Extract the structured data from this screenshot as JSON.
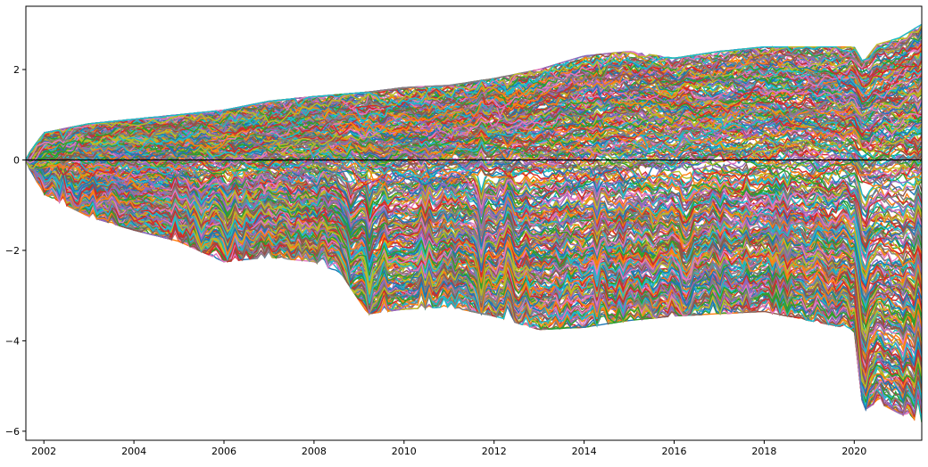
{
  "chart_data": {
    "type": "line",
    "title": "",
    "xlabel": "",
    "ylabel": "",
    "xlim": [
      2001.6,
      2021.5
    ],
    "ylim": [
      -6.2,
      3.4
    ],
    "x_ticks": [
      2002,
      2004,
      2006,
      2008,
      2010,
      2012,
      2014,
      2016,
      2018,
      2020
    ],
    "x_tick_labels": [
      "2002",
      "2004",
      "2006",
      "2008",
      "2010",
      "2012",
      "2014",
      "2016",
      "2018",
      "2020"
    ],
    "y_ticks": [
      -6,
      -4,
      -2,
      0,
      2
    ],
    "y_tick_labels": [
      "−6",
      "−4",
      "−2",
      "0",
      "2"
    ],
    "reference_line": {
      "y": 0,
      "color": "#000000"
    },
    "grid": false,
    "legend": "none",
    "palette": [
      "#1f77b4",
      "#ff7f0e",
      "#2ca02c",
      "#d62728",
      "#9467bd",
      "#8c564b",
      "#e377c2",
      "#7f7f7f",
      "#bcbd22",
      "#17becf"
    ],
    "series_note_count": 400,
    "envelope": {
      "dates": [
        2001.6,
        2002.0,
        2003.0,
        2004.0,
        2005.0,
        2006.0,
        2007.0,
        2008.0,
        2008.6,
        2009.2,
        2010.0,
        2011.0,
        2012.0,
        2013.0,
        2014.0,
        2015.0,
        2016.0,
        2017.0,
        2018.0,
        2019.0,
        2020.0,
        2020.2,
        2020.5,
        2021.0,
        2021.5
      ],
      "upper": [
        0.0,
        0.55,
        0.75,
        0.85,
        0.95,
        1.05,
        1.25,
        1.35,
        1.4,
        1.45,
        1.55,
        1.6,
        1.75,
        1.95,
        2.25,
        2.35,
        2.2,
        2.35,
        2.45,
        2.45,
        2.45,
        2.1,
        2.5,
        2.65,
        2.95
      ],
      "lower": [
        0.0,
        -0.7,
        -1.2,
        -1.5,
        -1.75,
        -2.2,
        -2.1,
        -2.2,
        -2.45,
        -3.35,
        -3.25,
        -3.2,
        -3.4,
        -3.7,
        -3.65,
        -3.5,
        -3.4,
        -3.35,
        -3.3,
        -3.5,
        -3.7,
        -5.5,
        -5.3,
        -5.55,
        -5.75
      ]
    },
    "jump_events": [
      2002.7,
      2005.5,
      2008.8,
      2009.3,
      2011.7,
      2016.3,
      2020.2
    ]
  }
}
